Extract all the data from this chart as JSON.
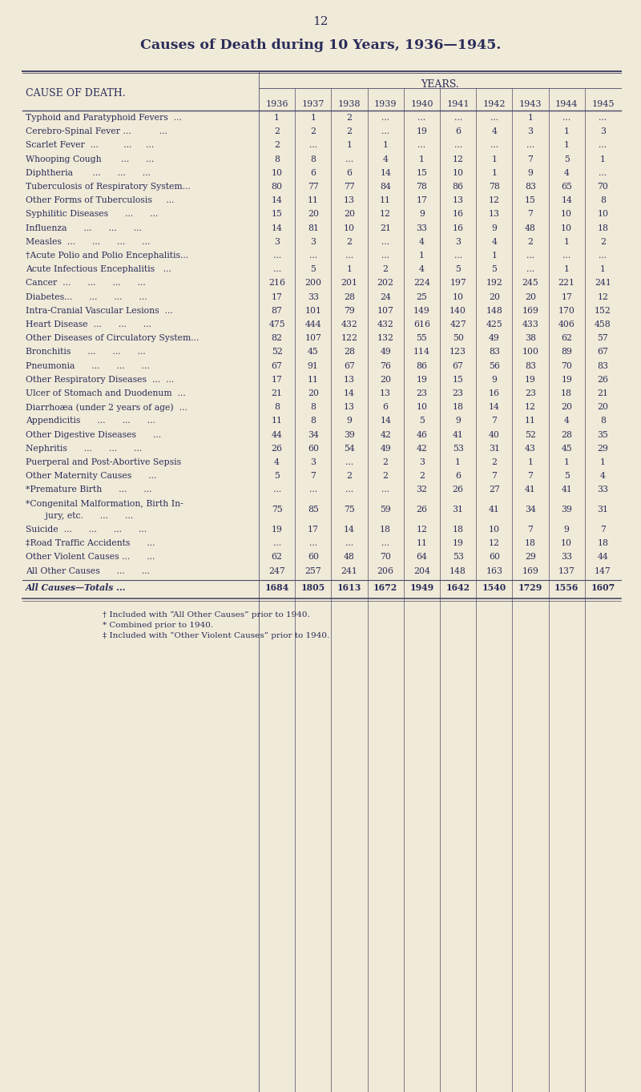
{
  "page_number": "12",
  "title": "Causes of Death during 10 Years, 1936—1945.",
  "years_header": "YEARS.",
  "cause_header": "CAUSE OF DEATH.",
  "years": [
    "1936",
    "1937",
    "1938",
    "1939",
    "1940",
    "1941",
    "1942",
    "1943",
    "1944",
    "1945"
  ],
  "rows": [
    {
      "cause": "Typhoid and Paratyphoid Fevers  ...",
      "values": [
        "1",
        "1",
        "2",
        "...",
        "...",
        "...",
        "...",
        "1",
        "...",
        "..."
      ]
    },
    {
      "cause": "Cerebro-Spinal Fever ...          ...",
      "values": [
        "2",
        "2",
        "2",
        "...",
        "19",
        "6",
        "4",
        "3",
        "1",
        "3"
      ]
    },
    {
      "cause": "Scarlet Fever  ...         ...     ...",
      "values": [
        "2",
        "...",
        "1",
        "1",
        "...",
        "...",
        "...",
        "...",
        "1",
        "..."
      ]
    },
    {
      "cause": "Whooping Cough       ...      ...",
      "values": [
        "8",
        "8",
        "...",
        "4",
        "1",
        "12",
        "1",
        "7",
        "5",
        "1"
      ]
    },
    {
      "cause": "Diphtheria       ...      ...      ...",
      "values": [
        "10",
        "6",
        "6",
        "14",
        "15",
        "10",
        "1",
        "9",
        "4",
        "..."
      ]
    },
    {
      "cause": "Tuberculosis of Respiratory System...",
      "values": [
        "80",
        "77",
        "77",
        "84",
        "78",
        "86",
        "78",
        "83",
        "65",
        "70"
      ]
    },
    {
      "cause": "Other Forms of Tuberculosis     ...",
      "values": [
        "14",
        "11",
        "13",
        "11",
        "17",
        "13",
        "12",
        "15",
        "14",
        "8"
      ]
    },
    {
      "cause": "Syphilitic Diseases      ...      ...",
      "values": [
        "15",
        "20",
        "20",
        "12",
        "9",
        "16",
        "13",
        "7",
        "10",
        "10"
      ]
    },
    {
      "cause": "Influenza      ...      ...      ...",
      "values": [
        "14",
        "81",
        "10",
        "21",
        "33",
        "16",
        "9",
        "48",
        "10",
        "18"
      ]
    },
    {
      "cause": "Measles  ...      ...      ...      ...",
      "values": [
        "3",
        "3",
        "2",
        "...",
        "4",
        "3",
        "4",
        "2",
        "1",
        "2"
      ]
    },
    {
      "cause": "†Acute Polio and Polio Encephalitis...",
      "values": [
        "...",
        "...",
        "...",
        "...",
        "1",
        "...",
        "1",
        "...",
        "...",
        "..."
      ]
    },
    {
      "cause": "Acute Infectious Encephalitis   ...",
      "values": [
        "...",
        "5",
        "1",
        "2",
        "4",
        "5",
        "5",
        "...",
        "1",
        "1"
      ]
    },
    {
      "cause": "Cancer  ...      ...      ...      ...",
      "values": [
        "216",
        "200",
        "201",
        "202",
        "224",
        "197",
        "192",
        "245",
        "221",
        "241"
      ]
    },
    {
      "cause": "Diabetes...      ...      ...      ...",
      "values": [
        "17",
        "33",
        "28",
        "24",
        "25",
        "10",
        "20",
        "20",
        "17",
        "12"
      ]
    },
    {
      "cause": "Intra-Cranial Vascular Lesions  ...",
      "values": [
        "87",
        "101",
        "79",
        "107",
        "149",
        "140",
        "148",
        "169",
        "170",
        "152"
      ]
    },
    {
      "cause": "Heart Disease  ...      ...      ...",
      "values": [
        "475",
        "444",
        "432",
        "432",
        "616",
        "427",
        "425",
        "433",
        "406",
        "458"
      ]
    },
    {
      "cause": "Other Diseases of Circulatory System...",
      "values": [
        "82",
        "107",
        "122",
        "132",
        "55",
        "50",
        "49",
        "38",
        "62",
        "57"
      ]
    },
    {
      "cause": "Bronchitis      ...      ...      ...",
      "values": [
        "52",
        "45",
        "28",
        "49",
        "114",
        "123",
        "83",
        "100",
        "89",
        "67"
      ]
    },
    {
      "cause": "Pneumonia      ...      ...      ...",
      "values": [
        "67",
        "91",
        "67",
        "76",
        "86",
        "67",
        "56",
        "83",
        "70",
        "83"
      ]
    },
    {
      "cause": "Other Respiratory Diseases  ...  ...",
      "values": [
        "17",
        "11",
        "13",
        "20",
        "19",
        "15",
        "9",
        "19",
        "19",
        "26"
      ]
    },
    {
      "cause": "Ulcer of Stomach and Duodenum  ...",
      "values": [
        "21",
        "20",
        "14",
        "13",
        "23",
        "23",
        "16",
        "23",
        "18",
        "21"
      ]
    },
    {
      "cause": "Diarrhoæa (under 2 years of age)  ...",
      "values": [
        "8",
        "8",
        "13",
        "6",
        "10",
        "18",
        "14",
        "12",
        "20",
        "20"
      ]
    },
    {
      "cause": "Appendicitis      ...      ...      ...",
      "values": [
        "11",
        "8",
        "9",
        "14",
        "5",
        "9",
        "7",
        "11",
        "4",
        "8"
      ]
    },
    {
      "cause": "Other Digestive Diseases      ...",
      "values": [
        "44",
        "34",
        "39",
        "42",
        "46",
        "41",
        "40",
        "52",
        "28",
        "35"
      ]
    },
    {
      "cause": "Nephritis      ...      ...      ...",
      "values": [
        "26",
        "60",
        "54",
        "49",
        "42",
        "53",
        "31",
        "43",
        "45",
        "29"
      ]
    },
    {
      "cause": "Puerperal and Post-Abortive Sepsis",
      "values": [
        "4",
        "3",
        "...",
        "2",
        "3",
        "1",
        "2",
        "1",
        "1",
        "1"
      ]
    },
    {
      "cause": "Other Maternity Causes      ...",
      "values": [
        "5",
        "7",
        "2",
        "2",
        "2",
        "6",
        "7",
        "7",
        "5",
        "4"
      ]
    },
    {
      "cause": "*Premature Birth      ...      ...",
      "values": [
        "...",
        "...",
        "...",
        "...",
        "32",
        "26",
        "27",
        "41",
        "41",
        "33"
      ]
    },
    {
      "cause": "*Congenital Malformation, Birth In-|       jury, etc.      ...      ...",
      "values": [
        "75",
        "85",
        "75",
        "59",
        "26",
        "31",
        "41",
        "34",
        "39",
        "31"
      ]
    },
    {
      "cause": "Suicide  ...      ...      ...      ...",
      "values": [
        "19",
        "17",
        "14",
        "18",
        "12",
        "18",
        "10",
        "7",
        "9",
        "7"
      ]
    },
    {
      "cause": "‡Road Traffic Accidents      ...",
      "values": [
        "...",
        "...",
        "...",
        "...",
        "11",
        "19",
        "12",
        "18",
        "10",
        "18"
      ]
    },
    {
      "cause": "Other Violent Causes ...      ...",
      "values": [
        "62",
        "60",
        "48",
        "70",
        "64",
        "53",
        "60",
        "29",
        "33",
        "44"
      ]
    },
    {
      "cause": "All Other Causes      ...      ...",
      "values": [
        "247",
        "257",
        "241",
        "206",
        "204",
        "148",
        "163",
        "169",
        "137",
        "147"
      ]
    }
  ],
  "totals_row": {
    "cause": "All Causes—Totals ...",
    "values": [
      "1684",
      "1805",
      "1613",
      "1672",
      "1949",
      "1642",
      "1540",
      "1729",
      "1556",
      "1607"
    ]
  },
  "footnotes": [
    "† Included with “All Other Causes” prior to 1940.",
    "* Combined prior to 1940.",
    "‡ Included with “Other Violent Causes” prior to 1940."
  ],
  "bg_color": "#f0ead8",
  "text_color": "#2b2d5a",
  "line_color": "#4a4a6a",
  "title_fontsize": 12.5,
  "header_fontsize": 8.5,
  "cell_fontsize": 7.8,
  "footnote_fontsize": 7.5
}
